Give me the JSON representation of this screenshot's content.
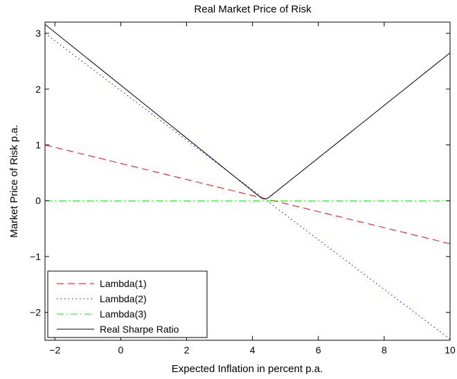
{
  "chart_data": {
    "type": "line",
    "title": "Real Market Price of Risk",
    "xlabel": "Expected Inflation in percent p.a.",
    "ylabel": "Market Price of Risk p.a.",
    "xlim": [
      -2.3,
      10
    ],
    "ylim": [
      -2.5,
      3.2
    ],
    "xticks": [
      -2,
      0,
      2,
      4,
      6,
      8,
      10
    ],
    "yticks": [
      -2,
      -1,
      0,
      1,
      2,
      3
    ],
    "x_tick_labels": [
      "−2",
      "0",
      "2",
      "4",
      "6",
      "8",
      "10"
    ],
    "y_tick_labels": [
      "−2",
      "−1",
      "0",
      "1",
      "2",
      "3"
    ],
    "grid": false,
    "legend_position": "bottom-left",
    "series": [
      {
        "name": "Lambda(1)",
        "color": "#ff0000",
        "style": "dashed",
        "x": [
          -2.3,
          10
        ],
        "y": [
          1.0,
          -0.77
        ]
      },
      {
        "name": "Lambda(2)",
        "color": "#0000ff",
        "style": "dotted",
        "x": [
          -2.3,
          10
        ],
        "y": [
          3.0,
          -2.48
        ]
      },
      {
        "name": "Lambda(3)",
        "color": "#00ff00",
        "style": "dashdot",
        "x": [
          -2.3,
          10
        ],
        "y": [
          0.0,
          0.0
        ]
      },
      {
        "name": "Real Sharpe Ratio",
        "color": "#000000",
        "style": "solid",
        "x": [
          -2.3,
          4.2,
          4.3,
          4.4,
          4.5,
          10
        ],
        "y": [
          3.16,
          0.08,
          0.04,
          0.03,
          0.06,
          2.65
        ]
      }
    ]
  }
}
